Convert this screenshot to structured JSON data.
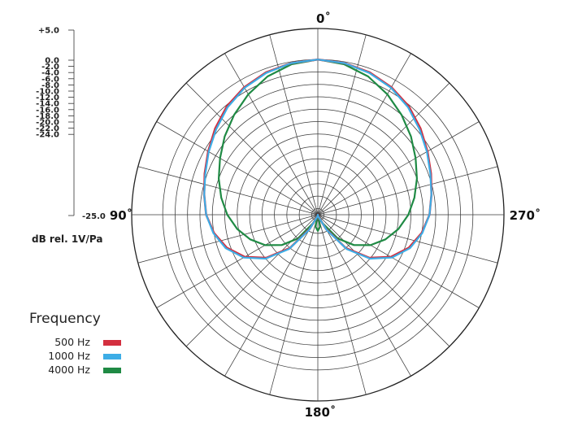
{
  "chart_data": {
    "type": "polar",
    "ylabel": "dB rel. 1V/Pa",
    "r_ticks": [
      "+5.0",
      "0.0",
      "-2.0",
      "-4.0",
      "-6.0",
      "-8.0",
      "-10.0",
      "-12.0",
      "-14.0",
      "-16.0",
      "-18.0",
      "-20.0",
      "-22.0",
      "-24.0",
      "-25.0"
    ],
    "r_tick_values": [
      5,
      0,
      -2,
      -4,
      -6,
      -8,
      -10,
      -12,
      -14,
      -16,
      -18,
      -20,
      -22,
      -24,
      -25
    ],
    "rlim": [
      -25,
      5
    ],
    "angle_labels": [
      "0˚",
      "90˚",
      "180˚",
      "270˚"
    ],
    "angle_values": [
      0,
      90,
      180,
      270
    ],
    "grid": true,
    "legend": {
      "title": "Frequency",
      "placement": "bottom-left"
    },
    "theta_deg": [
      0,
      10,
      20,
      30,
      40,
      50,
      60,
      70,
      80,
      90,
      100,
      110,
      120,
      130,
      140,
      150,
      160,
      170,
      180
    ],
    "series": [
      {
        "name": "500 Hz",
        "color": "#d32f3f",
        "values": [
          0,
          -0.2,
          -0.6,
          -1.3,
          -2.2,
          -3.4,
          -4.6,
          -5.6,
          -6.4,
          -7.0,
          -8.0,
          -9.4,
          -11.4,
          -14.2,
          -18.0,
          -22.4,
          -24.6,
          -24.8,
          -25.0
        ]
      },
      {
        "name": "1000 Hz",
        "color": "#3dade6",
        "values": [
          0,
          -0.2,
          -0.7,
          -1.4,
          -2.4,
          -3.6,
          -4.7,
          -5.7,
          -6.4,
          -7.0,
          -7.9,
          -9.2,
          -11.2,
          -14.0,
          -17.8,
          -22.2,
          -24.6,
          -24.8,
          -25.0
        ]
      },
      {
        "name": "4000 Hz",
        "color": "#1f8a44",
        "values": [
          0,
          -0.4,
          -1.3,
          -2.6,
          -4.0,
          -5.4,
          -6.8,
          -8.0,
          -9.2,
          -10.4,
          -11.8,
          -13.4,
          -15.2,
          -17.4,
          -20.0,
          -23.4,
          -24.6,
          -23.0,
          -22.4
        ]
      }
    ]
  }
}
